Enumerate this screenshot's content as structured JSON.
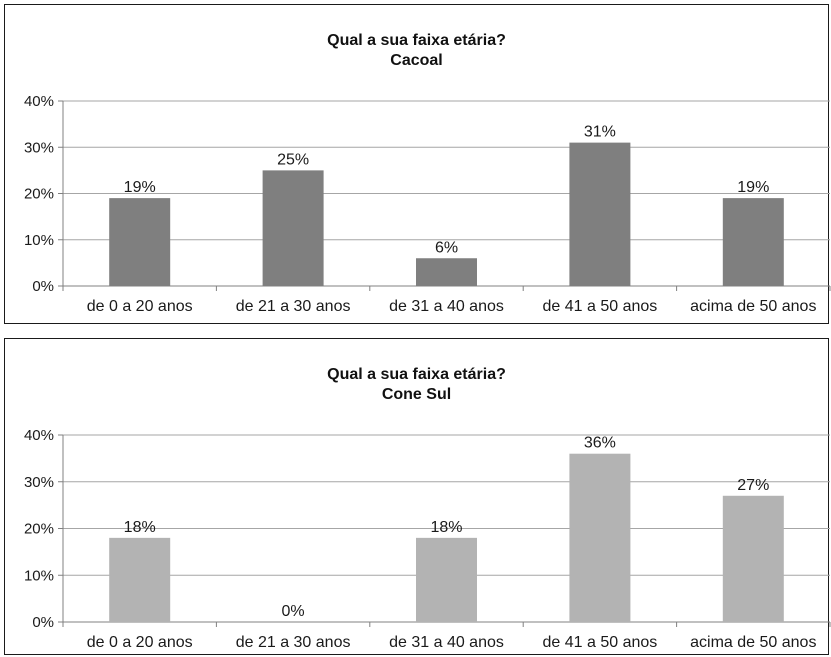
{
  "chart_data": [
    {
      "type": "bar",
      "title": "Qual a sua faixa etária?",
      "subtitle": "Cacoal",
      "categories": [
        "de 0 a 20 anos",
        "de 21 a 30 anos",
        "de 31 a 40 anos",
        "de 41 a 50 anos",
        "acima de 50 anos"
      ],
      "values": [
        19,
        25,
        6,
        31,
        19
      ],
      "data_labels": [
        "19%",
        "25%",
        "6%",
        "31%",
        "19%"
      ],
      "ylim": [
        0,
        40
      ],
      "yticks": [
        "0%",
        "10%",
        "20%",
        "30%",
        "40%"
      ],
      "grid": true,
      "color": "#7f7f7f"
    },
    {
      "type": "bar",
      "title": "Qual a sua faixa etária?",
      "subtitle": "Cone Sul",
      "categories": [
        "de 0 a 20 anos",
        "de 21 a 30 anos",
        "de 31 a 40 anos",
        "de 41 a 50 anos",
        "acima de 50 anos"
      ],
      "values": [
        18,
        0,
        18,
        36,
        27
      ],
      "data_labels": [
        "18%",
        "0%",
        "18%",
        "36%",
        "27%"
      ],
      "ylim": [
        0,
        40
      ],
      "yticks": [
        "0%",
        "10%",
        "20%",
        "30%",
        "40%"
      ],
      "grid": true,
      "color": "#b3b3b3"
    }
  ]
}
